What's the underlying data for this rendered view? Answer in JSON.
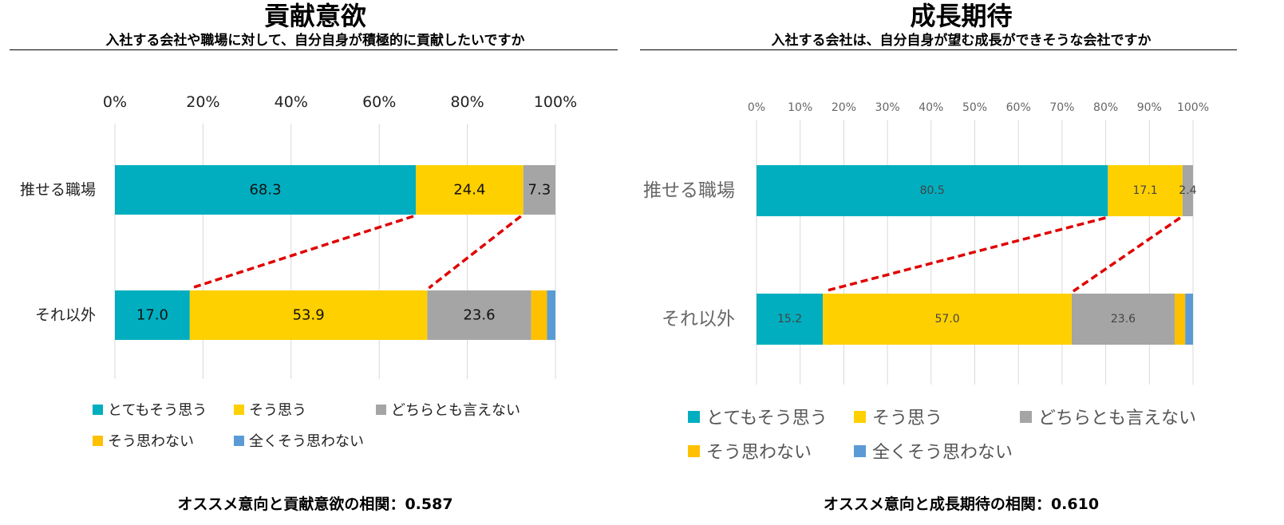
{
  "colors": {
    "strongly_agree": "#00AEBF",
    "agree": "#FFD000",
    "neutral": "#A5A5A5",
    "disagree": "#FFC000",
    "strongly_disagree": "#5B9BD5",
    "connector": "#E00000",
    "grid": "#D9D9D9"
  },
  "legend": [
    {
      "key": "strongly_agree",
      "label": "とてもそう思う"
    },
    {
      "key": "agree",
      "label": "そう思う"
    },
    {
      "key": "neutral",
      "label": "どちらとも言えない"
    },
    {
      "key": "disagree",
      "label": "そう思わない"
    },
    {
      "key": "strongly_disagree",
      "label": "全くそう思わない"
    }
  ],
  "left": {
    "title": "貢献意欲",
    "subtitle": "入社する会社や職場に対して、自分自身が積極的に貢献したいですか",
    "correlation_label": "オススメ意向と貢献意欲の相関",
    "correlation_sep": "：",
    "correlation_value": "0.587"
  },
  "right": {
    "title": "成長期待",
    "subtitle": "入社する会社は、自分自身が望む成長ができそうな会社ですか",
    "correlation_label": "オススメ意向と成長期待の相関",
    "correlation_sep": "：",
    "correlation_value": "0.610"
  },
  "chart_data": [
    {
      "type": "bar",
      "orientation": "horizontal-stacked-100",
      "title": "貢献意欲",
      "categories": [
        "推せる職場",
        "それ以外"
      ],
      "x_ticks": [
        "0%",
        "20%",
        "40%",
        "60%",
        "80%",
        "100%"
      ],
      "xlim": [
        0,
        100
      ],
      "series": [
        {
          "key": "strongly_agree",
          "name": "とてもそう思う",
          "values": [
            68.3,
            17.0
          ],
          "labels": [
            "68.3",
            "17.0"
          ]
        },
        {
          "key": "agree",
          "name": "そう思う",
          "values": [
            24.4,
            53.9
          ],
          "labels": [
            "24.4",
            "53.9"
          ]
        },
        {
          "key": "neutral",
          "name": "どちらとも言えない",
          "values": [
            7.3,
            23.6
          ],
          "labels": [
            "7.3",
            "23.6"
          ]
        },
        {
          "key": "disagree",
          "name": "そう思わない",
          "values": [
            0.0,
            3.6
          ],
          "labels": [
            "",
            ""
          ]
        },
        {
          "key": "strongly_disagree",
          "name": "全くそう思わない",
          "values": [
            0.0,
            1.9
          ],
          "labels": [
            "",
            ""
          ]
        }
      ],
      "connectors": [
        {
          "from_value": 68.3,
          "to_value": 17.0
        },
        {
          "from_value": 92.7,
          "to_value": 70.9
        }
      ]
    },
    {
      "type": "bar",
      "orientation": "horizontal-stacked-100",
      "title": "成長期待",
      "categories": [
        "推せる職場",
        "それ以外"
      ],
      "x_ticks": [
        "0%",
        "10%",
        "20%",
        "30%",
        "40%",
        "50%",
        "60%",
        "70%",
        "80%",
        "90%",
        "100%"
      ],
      "xlim": [
        0,
        100
      ],
      "series": [
        {
          "key": "strongly_agree",
          "name": "とてもそう思う",
          "values": [
            80.5,
            15.2
          ],
          "labels": [
            "80.5",
            "15.2"
          ]
        },
        {
          "key": "agree",
          "name": "そう思う",
          "values": [
            17.1,
            57.0
          ],
          "labels": [
            "17.1",
            "57.0"
          ]
        },
        {
          "key": "neutral",
          "name": "どちらとも言えない",
          "values": [
            2.4,
            23.6
          ],
          "labels": [
            "2.4",
            "23.6"
          ]
        },
        {
          "key": "disagree",
          "name": "そう思わない",
          "values": [
            0.0,
            2.4
          ],
          "labels": [
            "",
            ""
          ]
        },
        {
          "key": "strongly_disagree",
          "name": "全くそう思わない",
          "values": [
            0.0,
            1.8
          ],
          "labels": [
            "",
            ""
          ]
        }
      ],
      "connectors": [
        {
          "from_value": 80.5,
          "to_value": 15.2
        },
        {
          "from_value": 97.6,
          "to_value": 72.2
        }
      ]
    }
  ]
}
